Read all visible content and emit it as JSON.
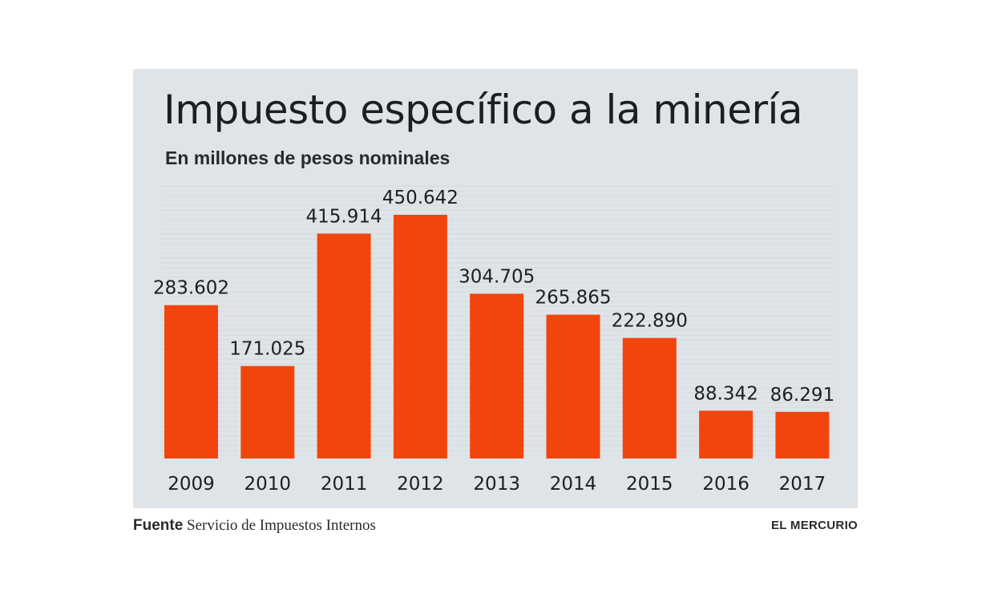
{
  "chart_data": {
    "type": "bar",
    "title": "Impuesto específico a la minería",
    "subtitle": "En millones de pesos nominales",
    "categories": [
      "2009",
      "2010",
      "2011",
      "2012",
      "2013",
      "2014",
      "2015",
      "2016",
      "2017"
    ],
    "values": [
      283602,
      171025,
      415914,
      450642,
      304705,
      265865,
      222890,
      88342,
      86291
    ],
    "value_labels": [
      "283.602",
      "171.025",
      "415.914",
      "450.642",
      "304.705",
      "265.865",
      "222.890",
      "88.342",
      "86.291"
    ],
    "xlabel": "",
    "ylabel": "",
    "ylim": [
      0,
      500000
    ],
    "grid": false,
    "legend": "none",
    "colors": {
      "bar": "#f2450e",
      "panel": "#dfe4e8",
      "text": "#1e1e1e"
    }
  },
  "footer": {
    "source_label": "Fuente",
    "source_text": "Servicio de Impuestos Internos",
    "brand": "EL MERCURIO"
  }
}
